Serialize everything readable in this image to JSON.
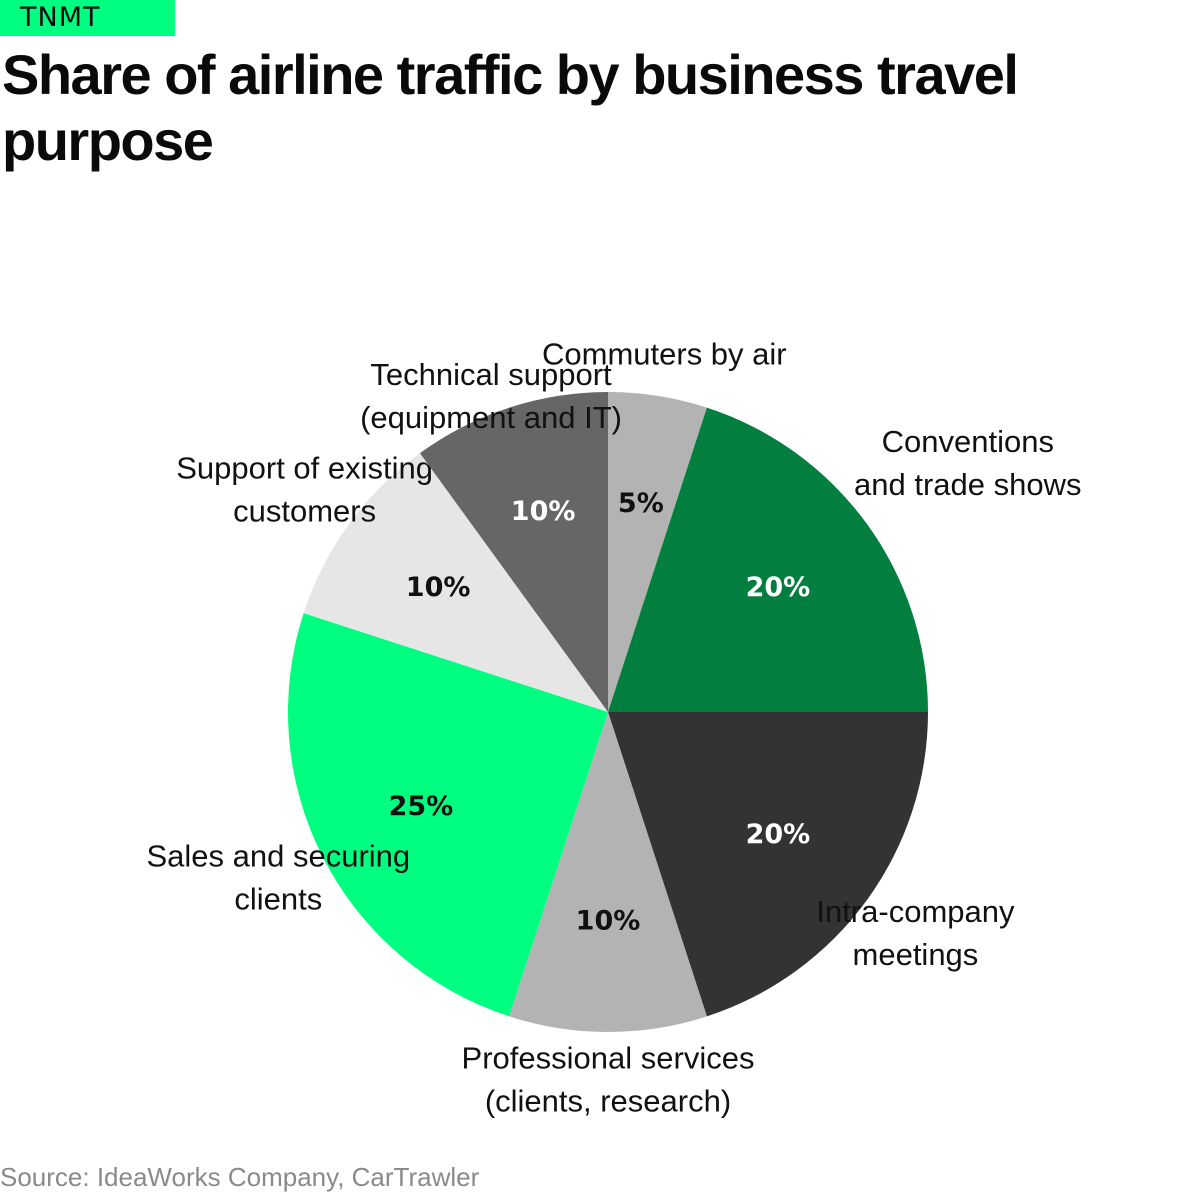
{
  "brand": "TNMT",
  "header": {
    "title": "Share of airline traffic by business travel purpose"
  },
  "source": "Source: IdeaWorks Company, CarTrawler",
  "chart_data": {
    "type": "pie",
    "title": "Share of airline traffic by business travel purpose",
    "unit": "%",
    "slices": [
      {
        "label": [
          "Commuters by air"
        ],
        "value": 5,
        "value_label": "5%",
        "color": "#b3b3b3",
        "label_color": "#111111"
      },
      {
        "label": [
          "Conventions",
          "and trade shows"
        ],
        "value": 20,
        "value_label": "20%",
        "color": "#027f3f",
        "label_color": "#ffffff"
      },
      {
        "label": [
          "Intra-company",
          "meetings"
        ],
        "value": 20,
        "value_label": "20%",
        "color": "#333333",
        "label_color": "#ffffff"
      },
      {
        "label": [
          "Professional services",
          "(clients, research)"
        ],
        "value": 10,
        "value_label": "10%",
        "color": "#b3b3b3",
        "label_color": "#111111"
      },
      {
        "label": [
          "Sales and securing",
          "clients"
        ],
        "value": 25,
        "value_label": "25%",
        "color": "#00ff80",
        "label_color": "#111111"
      },
      {
        "label": [
          "Support of existing",
          "customers"
        ],
        "value": 10,
        "value_label": "10%",
        "color": "#e6e6e6",
        "label_color": "#111111"
      },
      {
        "label": [
          "Technical support",
          "(equipment and IT)"
        ],
        "value": 10,
        "value_label": "10%",
        "color": "#666666",
        "label_color": "#ffffff"
      }
    ]
  }
}
